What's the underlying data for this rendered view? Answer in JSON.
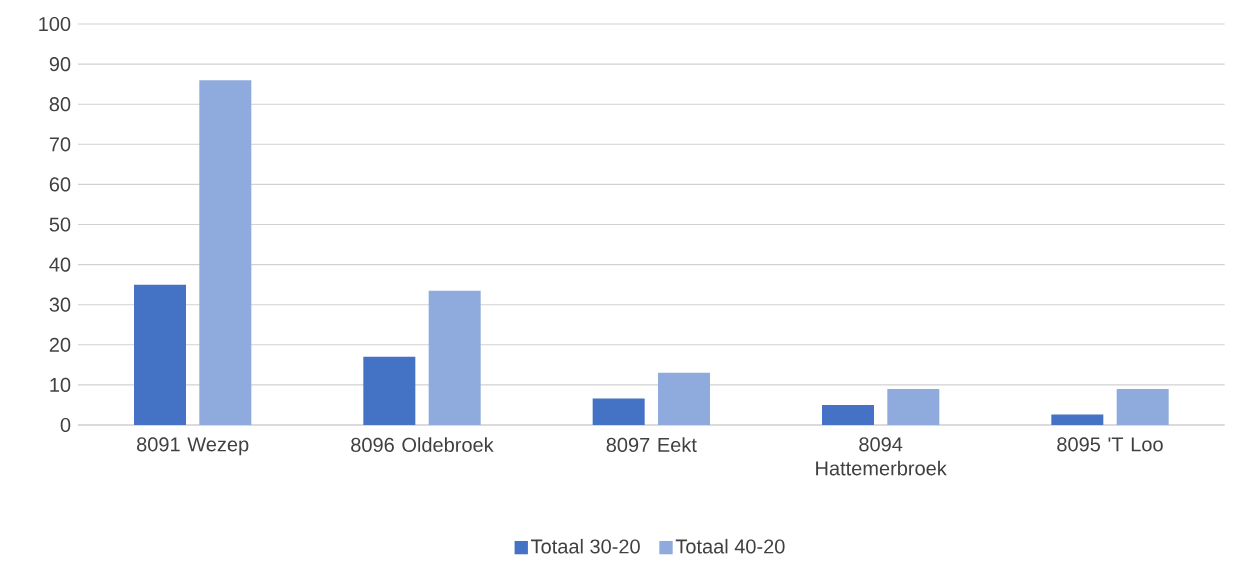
{
  "chart_data": {
    "type": "bar",
    "categories": [
      "8091 Wezep",
      "8096 Oldebroek",
      "8097 Eekt",
      "8094 Hattemerbroek",
      "8095 'T Loo"
    ],
    "series": [
      {
        "name": "Totaal 30-20",
        "color": "#4472c4",
        "values": [
          35,
          17,
          6.6,
          5,
          2.6
        ]
      },
      {
        "name": "Totaal 40-20",
        "color": "#8faadc",
        "values": [
          86,
          33.5,
          13,
          9,
          9
        ]
      }
    ],
    "ylim": [
      0,
      100
    ],
    "yticks": [
      0,
      10,
      20,
      30,
      40,
      50,
      60,
      70,
      80,
      90,
      100
    ],
    "grid": "y",
    "legend": "bottom"
  }
}
